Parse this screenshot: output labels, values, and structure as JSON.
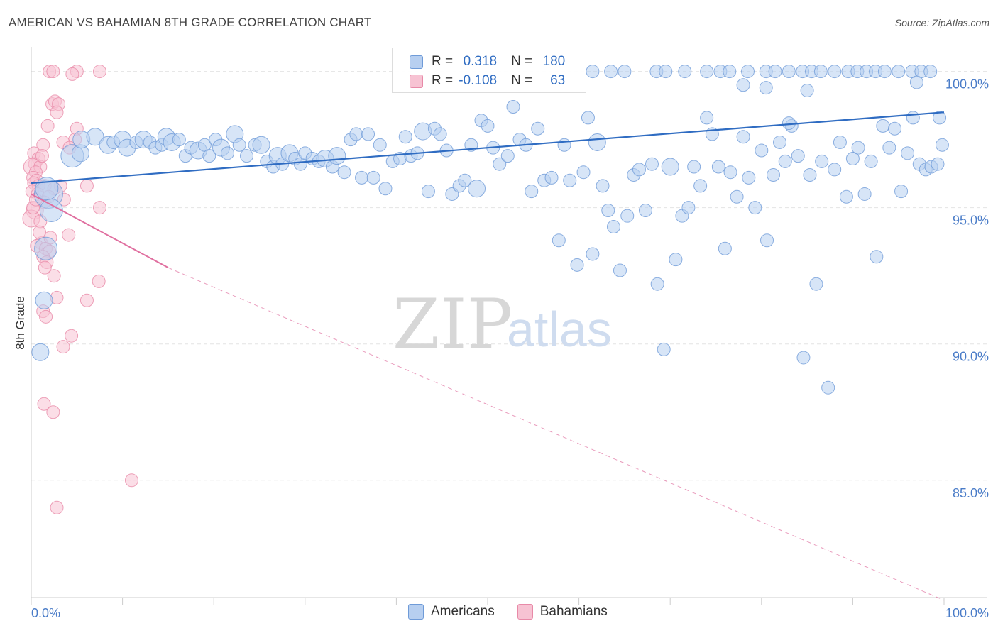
{
  "title": "AMERICAN VS BAHAMIAN 8TH GRADE CORRELATION CHART",
  "source": "Source: ZipAtlas.com",
  "watermark": {
    "zip": "ZIP",
    "atlas": "atlas"
  },
  "legend_stats": [
    {
      "r_label": "R =",
      "r_value": "0.318",
      "n_label": "N =",
      "n_value": "180"
    },
    {
      "r_label": "R =",
      "r_value": "-0.108",
      "n_label": "N =",
      "n_value": "63"
    }
  ],
  "colors": {
    "american": "#6f9bd8",
    "american_fill": "#b7cff0",
    "american_line": "#2f6cc2",
    "bahamian": "#e88aa8",
    "bahamian_fill": "#f7c3d3",
    "bahamian_line": "#e070a0",
    "tick_label": "#4a7cc8"
  },
  "chart_data": {
    "type": "scatter",
    "title": "AMERICAN VS BAHAMIAN 8TH GRADE CORRELATION CHART",
    "xlabel": "",
    "ylabel": "8th Grade",
    "xlim": [
      0,
      100
    ],
    "ylim": [
      80.7,
      100.9
    ],
    "x_tick_labels": [
      "0.0%",
      "100.0%"
    ],
    "y_ticks": [
      100,
      95,
      90,
      85
    ],
    "y_tick_labels": [
      "100.0%",
      "95.0%",
      "90.0%",
      "85.0%"
    ],
    "grid": true,
    "legend": "bottom-center",
    "series": [
      {
        "name": "Americans",
        "r": 0.318,
        "n": 180,
        "trend": {
          "x": [
            0,
            100
          ],
          "y": [
            95.9,
            98.5
          ],
          "style": "solid"
        },
        "points": [
          [
            1.9,
            95.5,
            3
          ],
          [
            1.7,
            95.7,
            2
          ],
          [
            2.2,
            94.9,
            2
          ],
          [
            1.6,
            93.5,
            2
          ],
          [
            1.4,
            91.6,
            1
          ],
          [
            1.0,
            89.7,
            1
          ],
          [
            4.5,
            96.9,
            2
          ],
          [
            5.4,
            97.0,
            1
          ],
          [
            5.5,
            97.5,
            1
          ],
          [
            7.0,
            97.6,
            1
          ],
          [
            8.4,
            97.3,
            1
          ],
          [
            9.0,
            97.4,
            0
          ],
          [
            10.0,
            97.5,
            1
          ],
          [
            10.5,
            97.2,
            1
          ],
          [
            11.5,
            97.4,
            0
          ],
          [
            12.3,
            97.5,
            1
          ],
          [
            13.0,
            97.4,
            0
          ],
          [
            13.6,
            97.2,
            0
          ],
          [
            14.3,
            97.3,
            0
          ],
          [
            14.8,
            97.6,
            1
          ],
          [
            15.4,
            97.4,
            1
          ],
          [
            16.2,
            97.5,
            0
          ],
          [
            16.9,
            96.9,
            0
          ],
          [
            17.5,
            97.2,
            0
          ],
          [
            18.3,
            97.1,
            1
          ],
          [
            19.0,
            97.3,
            0
          ],
          [
            19.5,
            96.9,
            0
          ],
          [
            20.2,
            97.5,
            0
          ],
          [
            20.8,
            97.2,
            1
          ],
          [
            21.5,
            97.0,
            0
          ],
          [
            22.3,
            97.7,
            1
          ],
          [
            22.8,
            97.3,
            0
          ],
          [
            23.6,
            96.9,
            0
          ],
          [
            24.5,
            97.3,
            0
          ],
          [
            25.2,
            97.3,
            1
          ],
          [
            25.8,
            96.7,
            0
          ],
          [
            26.5,
            96.5,
            0
          ],
          [
            27.0,
            96.9,
            1
          ],
          [
            27.5,
            96.6,
            0
          ],
          [
            28.3,
            97.0,
            1
          ],
          [
            28.9,
            96.8,
            0
          ],
          [
            29.5,
            96.6,
            0
          ],
          [
            30.0,
            97.0,
            0
          ],
          [
            30.8,
            96.8,
            0
          ],
          [
            31.5,
            96.7,
            0
          ],
          [
            32.2,
            96.8,
            1
          ],
          [
            33.0,
            96.5,
            0
          ],
          [
            33.5,
            96.9,
            1
          ],
          [
            34.3,
            96.3,
            0
          ],
          [
            35.0,
            97.5,
            0
          ],
          [
            35.6,
            97.7,
            0
          ],
          [
            36.2,
            96.1,
            0
          ],
          [
            36.9,
            97.7,
            0
          ],
          [
            37.5,
            96.1,
            0
          ],
          [
            38.2,
            97.3,
            0
          ],
          [
            38.8,
            95.7,
            0
          ],
          [
            39.6,
            96.7,
            0
          ],
          [
            40.4,
            96.8,
            0
          ],
          [
            41.0,
            97.6,
            0
          ],
          [
            41.6,
            96.9,
            0
          ],
          [
            42.3,
            97.0,
            0
          ],
          [
            42.9,
            97.8,
            1
          ],
          [
            43.5,
            95.6,
            0
          ],
          [
            44.2,
            97.9,
            0
          ],
          [
            44.8,
            97.7,
            0
          ],
          [
            45.5,
            97.1,
            0
          ],
          [
            46.1,
            95.5,
            0
          ],
          [
            46.9,
            95.8,
            0
          ],
          [
            47.5,
            96.0,
            0
          ],
          [
            48.2,
            97.3,
            0
          ],
          [
            48.8,
            95.7,
            1
          ],
          [
            49.3,
            98.2,
            0
          ],
          [
            50.0,
            98.0,
            0
          ],
          [
            50.6,
            97.2,
            0
          ],
          [
            51.3,
            96.6,
            0
          ],
          [
            52.2,
            96.9,
            0
          ],
          [
            52.8,
            98.7,
            0
          ],
          [
            53.5,
            97.5,
            0
          ],
          [
            54.2,
            97.3,
            0
          ],
          [
            54.8,
            95.6,
            0
          ],
          [
            55.5,
            97.9,
            0
          ],
          [
            56.2,
            96.0,
            0
          ],
          [
            57.0,
            96.1,
            0
          ],
          [
            57.8,
            93.8,
            0
          ],
          [
            58.4,
            97.3,
            0
          ],
          [
            59.0,
            96.0,
            0
          ],
          [
            59.8,
            92.9,
            0
          ],
          [
            60.5,
            96.3,
            0
          ],
          [
            61.0,
            98.3,
            0
          ],
          [
            61.5,
            93.3,
            0
          ],
          [
            62.0,
            97.4,
            1
          ],
          [
            62.6,
            95.8,
            0
          ],
          [
            63.2,
            94.9,
            0
          ],
          [
            63.8,
            94.3,
            0
          ],
          [
            64.5,
            92.7,
            0
          ],
          [
            65.3,
            94.7,
            0
          ],
          [
            66.0,
            96.2,
            0
          ],
          [
            66.6,
            96.4,
            0
          ],
          [
            67.3,
            94.9,
            0
          ],
          [
            68.0,
            96.6,
            0
          ],
          [
            68.6,
            92.2,
            0
          ],
          [
            69.3,
            89.8,
            0
          ],
          [
            70.0,
            96.5,
            1
          ],
          [
            70.6,
            93.1,
            0
          ],
          [
            71.3,
            94.7,
            0
          ],
          [
            72.0,
            95.0,
            0
          ],
          [
            72.6,
            96.5,
            0
          ],
          [
            73.3,
            95.8,
            0
          ],
          [
            74.0,
            98.3,
            0
          ],
          [
            74.6,
            97.7,
            0
          ],
          [
            75.3,
            96.5,
            0
          ],
          [
            76.0,
            93.5,
            0
          ],
          [
            76.6,
            96.3,
            0
          ],
          [
            77.3,
            95.4,
            0
          ],
          [
            78.0,
            97.6,
            0
          ],
          [
            78.6,
            96.1,
            0
          ],
          [
            79.3,
            95.0,
            0
          ],
          [
            80.0,
            97.1,
            0
          ],
          [
            80.6,
            93.8,
            0
          ],
          [
            81.3,
            96.2,
            0
          ],
          [
            82.0,
            97.4,
            0
          ],
          [
            82.6,
            96.7,
            0
          ],
          [
            83.3,
            98.0,
            0
          ],
          [
            84.0,
            96.9,
            0
          ],
          [
            84.6,
            89.5,
            0
          ],
          [
            85.3,
            96.2,
            0
          ],
          [
            86.0,
            92.2,
            0
          ],
          [
            86.6,
            96.7,
            0
          ],
          [
            87.3,
            88.4,
            0
          ],
          [
            88.0,
            96.4,
            0
          ],
          [
            88.6,
            97.4,
            0
          ],
          [
            89.3,
            95.4,
            0
          ],
          [
            90.0,
            96.8,
            0
          ],
          [
            90.6,
            97.2,
            0
          ],
          [
            91.3,
            95.5,
            0
          ],
          [
            92.0,
            96.7,
            0
          ],
          [
            92.6,
            93.2,
            0
          ],
          [
            93.3,
            98.0,
            0
          ],
          [
            94.0,
            97.2,
            0
          ],
          [
            94.6,
            97.9,
            0
          ],
          [
            95.3,
            95.6,
            0
          ],
          [
            96.0,
            97.0,
            0
          ],
          [
            96.6,
            98.3,
            0
          ],
          [
            97.3,
            96.6,
            0
          ],
          [
            98.0,
            96.4,
            0
          ],
          [
            98.6,
            96.5,
            0
          ],
          [
            99.3,
            96.6,
            0
          ],
          [
            99.8,
            97.3,
            0
          ],
          [
            61.5,
            100,
            0
          ],
          [
            63.5,
            100,
            0
          ],
          [
            65.0,
            100,
            0
          ],
          [
            68.5,
            100,
            0
          ],
          [
            69.5,
            100,
            0
          ],
          [
            71.6,
            100,
            0
          ],
          [
            74.0,
            100,
            0
          ],
          [
            75.5,
            100,
            0
          ],
          [
            76.5,
            100,
            0
          ],
          [
            78.5,
            100,
            0
          ],
          [
            80.5,
            100,
            0
          ],
          [
            81.5,
            100,
            0
          ],
          [
            83.0,
            100,
            0
          ],
          [
            84.5,
            100,
            0
          ],
          [
            85.5,
            100,
            0
          ],
          [
            86.5,
            100,
            0
          ],
          [
            88.0,
            100,
            0
          ],
          [
            89.5,
            100,
            0
          ],
          [
            90.5,
            100,
            0
          ],
          [
            91.5,
            100,
            0
          ],
          [
            92.5,
            100,
            0
          ],
          [
            93.5,
            100,
            0
          ],
          [
            95.0,
            100,
            0
          ],
          [
            96.5,
            100,
            0
          ],
          [
            97.5,
            100,
            0
          ],
          [
            98.5,
            100,
            0
          ],
          [
            99.5,
            98.3,
            0
          ],
          [
            97.0,
            99.6,
            0
          ],
          [
            85.0,
            99.3,
            0
          ],
          [
            83.0,
            98.1,
            0
          ],
          [
            80.5,
            99.4,
            0
          ],
          [
            78.0,
            99.5,
            0
          ]
        ]
      },
      {
        "name": "Bahamians",
        "r": -0.108,
        "n": 63,
        "trend": {
          "x": [
            0,
            15
          ],
          "y": [
            95.5,
            92.8
          ],
          "x_dashed_end": 100,
          "y_dashed_end": 80.6,
          "style": "solid-then-dashed"
        },
        "points": [
          [
            2.0,
            100,
            0
          ],
          [
            2.4,
            100,
            0
          ],
          [
            5.0,
            100,
            0
          ],
          [
            7.5,
            100,
            0
          ],
          [
            4.5,
            99.9,
            0
          ],
          [
            2.3,
            98.8,
            0
          ],
          [
            2.6,
            98.9,
            0
          ],
          [
            3.0,
            98.8,
            0
          ],
          [
            2.8,
            98.5,
            0
          ],
          [
            1.8,
            98.0,
            0
          ],
          [
            5.0,
            97.9,
            0
          ],
          [
            4.8,
            97.5,
            0
          ],
          [
            3.5,
            97.4,
            0
          ],
          [
            1.3,
            97.3,
            0
          ],
          [
            4.2,
            97.2,
            0
          ],
          [
            0.3,
            97.0,
            0
          ],
          [
            0.8,
            96.8,
            0
          ],
          [
            0.4,
            96.6,
            0
          ],
          [
            0.1,
            96.5,
            1
          ],
          [
            1.0,
            96.5,
            0
          ],
          [
            0.5,
            96.3,
            0
          ],
          [
            0.2,
            96.1,
            0
          ],
          [
            0.6,
            96.0,
            0
          ],
          [
            0.3,
            95.9,
            0
          ],
          [
            0.8,
            95.8,
            0
          ],
          [
            1.5,
            95.8,
            0
          ],
          [
            3.2,
            95.8,
            0
          ],
          [
            6.1,
            95.8,
            0
          ],
          [
            2.5,
            95.7,
            0
          ],
          [
            0.1,
            95.6,
            0
          ],
          [
            0.7,
            95.5,
            0
          ],
          [
            1.9,
            95.4,
            0
          ],
          [
            3.6,
            95.3,
            0
          ],
          [
            1.4,
            95.2,
            0
          ],
          [
            7.5,
            95.0,
            0
          ],
          [
            0.4,
            94.9,
            1
          ],
          [
            0.0,
            94.6,
            1
          ],
          [
            1.0,
            94.5,
            0
          ],
          [
            4.1,
            94.0,
            0
          ],
          [
            1.1,
            93.7,
            0
          ],
          [
            0.6,
            93.6,
            0
          ],
          [
            1.6,
            93.5,
            0
          ],
          [
            2.0,
            93.4,
            0
          ],
          [
            1.3,
            93.2,
            0
          ],
          [
            1.7,
            93.0,
            0
          ],
          [
            1.5,
            92.8,
            0
          ],
          [
            2.5,
            92.5,
            0
          ],
          [
            7.4,
            92.3,
            0
          ],
          [
            2.8,
            91.7,
            0
          ],
          [
            6.1,
            91.6,
            0
          ],
          [
            1.3,
            91.2,
            0
          ],
          [
            1.6,
            91.0,
            0
          ],
          [
            4.4,
            90.3,
            0
          ],
          [
            3.5,
            89.9,
            0
          ],
          [
            1.4,
            87.8,
            0
          ],
          [
            2.4,
            87.5,
            0
          ],
          [
            11.0,
            85.0,
            0
          ],
          [
            2.8,
            84.0,
            0
          ],
          [
            0.2,
            95.0,
            0
          ],
          [
            0.9,
            94.1,
            0
          ],
          [
            1.2,
            96.9,
            0
          ],
          [
            2.1,
            93.9,
            0
          ],
          [
            0.5,
            95.3,
            0
          ]
        ]
      }
    ]
  }
}
